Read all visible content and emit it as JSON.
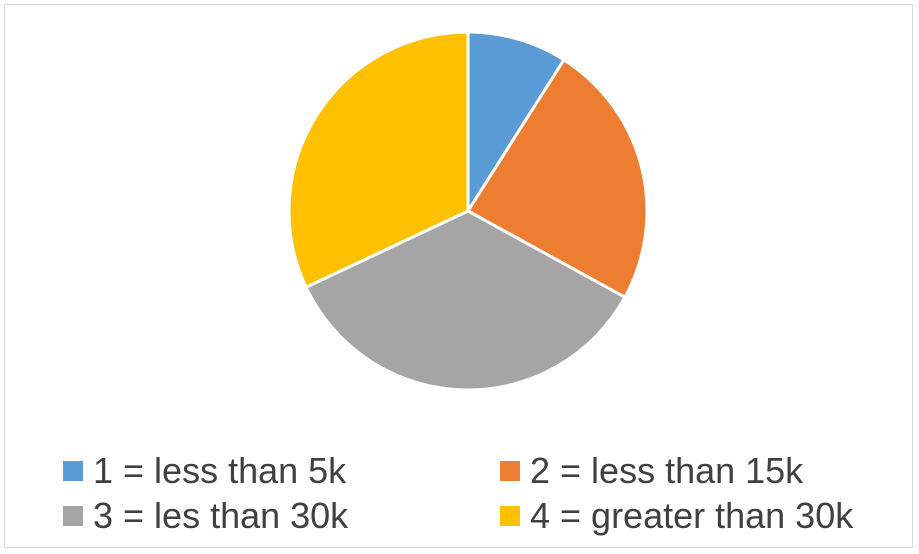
{
  "chart_data": {
    "type": "pie",
    "categories": [
      "1 = less than 5k",
      "2 = less than 15k",
      "3 = les than 30k",
      "4 = greater than 30k"
    ],
    "values": [
      9,
      24,
      35,
      32
    ],
    "colors": [
      "#5b9bd5",
      "#ed7d31",
      "#a5a5a5",
      "#ffc000"
    ],
    "title": "",
    "legend_position": "bottom"
  }
}
